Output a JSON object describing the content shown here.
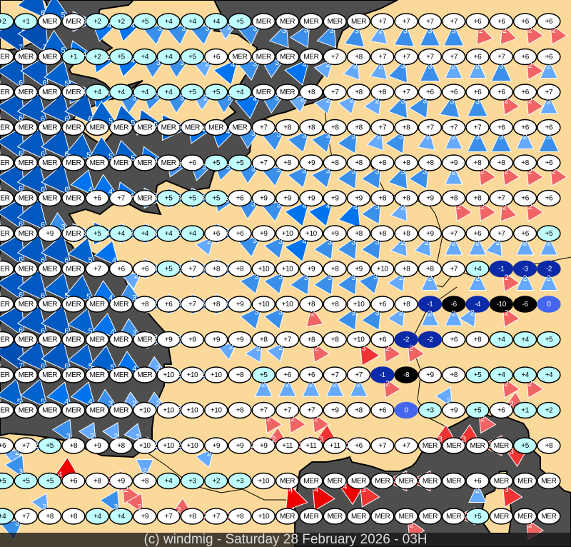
{
  "footer": {
    "credit": "(c) windmig - Saturday 28 February 2026 - 03H"
  },
  "colors": {
    "land": "#fbd99a",
    "sea": "#4e4e4e",
    "coast": "#000000",
    "ellipse_warm": "#ffffff",
    "ellipse_mild": "#c0ffff",
    "ellipse_zero": "#4466ee",
    "ellipse_cold": "#0a2aa8",
    "ellipse_frost": "#000000",
    "wind_blue": {
      "2": "#66aaff",
      "3": "#3a8fea",
      "4": "#0073ee",
      "5": "#0062cc",
      "6": "#0058c0",
      "7": "#0050b4"
    },
    "wind_red": {
      "2": "#f06464",
      "3": "#f03434",
      "4": "#ee0000"
    }
  },
  "legend_note": "station token = temperature,wind force,colour (b blue / r red),vane direction in compass degrees",
  "stations": [
    [
      "+2,4,b,300",
      "+1",
      "MER,6,b,320",
      "MER,5,b,300",
      "+2,3,b,270",
      "+2,4,b,250",
      "+5,4,b,250",
      "+4,3,b,230",
      "+4,3,b,230",
      "+4,3,b,230",
      "+5,2,b,240",
      "MER,3,b,230",
      "MER,3,b,200",
      "MER,3,b,210",
      "MER,3,b,200",
      "MER,3,b,190",
      "+7,2,b,190",
      "+7,3,b,185",
      "+7,3,b,180",
      "+7,3,b,180",
      "+6,2,r,160",
      "+6,2,r,160",
      "+6,2,r,150",
      "+6,2,r,150"
    ],
    [
      "MER,6,b,320",
      "MER,7,b,330",
      "MER,7,b,330",
      "+1,5,b,300",
      "+2,4,b,280",
      "+5,4,b,260",
      "+4,4,b,250",
      "+4,3,b,240",
      "+5,3,b,240",
      "+6,2,b,230",
      "MER,4,b,220",
      "MER,3,b,230",
      "MER,3,b,240",
      "MER,4,b,220",
      "+7,2,b,220",
      "+8,2,b,200",
      "+7,2,b,190",
      "+7,3,b,200",
      "+7,3,b,180",
      "+7,2,b,180",
      "+6,2,b,180",
      "+7,3,b,180",
      "+6,2,r,150",
      "+6,2,b,180"
    ],
    [
      "MER,6,b,330",
      "MER,6,b,330",
      "MER,6,b,330",
      "MER,5,b,320",
      "+4,4,b,270",
      "+4,4,b,260",
      "+4,3,b,240",
      "+4,3,b,250",
      "+5,3,b,240",
      "+5,2,b,240",
      "+4,3,b,240",
      "MER,4,b,230",
      "MER,3,b,240",
      "+8,2,b,230",
      "+7,2,b,220",
      "+8,2,b,220",
      "+8,2,b,210",
      "+7,3,b,200",
      "+6,3,b,210",
      "+6,3,b,190",
      "+6,3,b,180",
      "+6,2,r,150",
      "+6,2,r,150",
      "+7,2,b,180"
    ],
    [
      "MER,6,b,330",
      "MER,6,b,330",
      "MER,6,b,320",
      "MER,6,b,320",
      "MER,6,b,320",
      "MER,5,b,300",
      "MER,5,b,290",
      "MER,5,b,280",
      "MER,5,b,270",
      "MER,4,b,260",
      "MER,4,b,250",
      "+7,3,b,240",
      "+8,3,b,230",
      "+8,3,b,220",
      "+8,3,b,220",
      "+8,3,b,210",
      "+7,2,b,200",
      "+8,3,b,210",
      "+7,2,b,190",
      "+7,2,b,180",
      "+7,3,b,180",
      "+6,3,b,180",
      "+6,2,b,180",
      "+6,3,b,180"
    ],
    [
      "MER,6,b,330",
      "MER,6,b,330",
      "MER,6,b,320",
      "MER,6,b,320",
      "MER,5,b,310",
      "MER,5,b,300",
      "MER,5,b,290",
      "MER,4,b,280",
      "+6,3,b,260",
      "+5,3,b,250",
      "+5,3,b,250",
      "+7,3,b,240",
      "+8,3,b,230",
      "+9,3,b,220",
      "+8,3,b,220",
      "+8,3,b,210",
      "+8,3,b,210",
      "+8,3,b,200",
      "+8,3,b,210",
      "+9,2,b,180",
      "+8,2,r,150",
      "+8,2,r,150",
      "+8,2,r,150",
      "+6,2,r,150"
    ],
    [
      "MER,6,b,330",
      "MER,6,b,330",
      "MER,6,b,320",
      "MER,6,b,320",
      "+6,4,b,320",
      "+7,4,b,300",
      "MER,4,b,280",
      "+5,3,b,270",
      "+5,3,b,270",
      "+5,3,b,270",
      "+6,3,b,260",
      "+9,3,b,240",
      "+9,3,b,230",
      "+9,4,b,220",
      "+9,4,b,220",
      "+9,4,b,200",
      "+8,3,b,210",
      "+8,2,b,200",
      "+9",
      "+8,2,r,150",
      "+8,2,r,150",
      "+7,2,r,160",
      "+6,2,r,150",
      "+6"
    ],
    [
      "MER,6,b,330",
      "MER,6,b,330",
      "+9,6,b,320",
      "MER,3,b,300",
      "+5,3,b,270",
      "+4,4,b,270",
      "+4,3,b,270",
      "+4,3,b,270",
      "+4,2,b,270",
      "+6,2,b,220",
      "+6,3,b,270",
      "+9,3,b,230",
      "+10,3,b,220",
      "+10,4,b,220",
      "+9,3,b,210",
      "+8,3,b,210",
      "+8,3,b,210",
      "+8,2,b,200",
      "+9,2,b,200",
      "+7,2,b,180",
      "+6,2,b,180",
      "+7,2,b,200",
      "+6,2,b,180",
      "+5,2,b,180"
    ],
    [
      "MER,6,b,330",
      "MER,6,b,330",
      "MER,6,b,320",
      "MER,6,b,320",
      "+7,5,b,320",
      "+6,4,b,320",
      "+6,2,b,230",
      "+5,3,b,270",
      "+7,2,b,270",
      "+8,3,b,270",
      "+8,3,b,270",
      "+10,3,b,220",
      "+10,3,b,220",
      "+9,3,b,210",
      "+8,3,b,210",
      "+9,3,b,210",
      "+10,3,b,220",
      "+8,2,b,210",
      "+8,2,b,180",
      "+7",
      "+4,2,b,180",
      "-1,2,r,150",
      "-3,2,b,180",
      "-2,2,b,180"
    ],
    [
      "MER,6,b,330",
      "MER,6,b,330",
      "MER,6,b,320",
      "MER,5,b,320",
      "MER,5,b,310",
      "MER,4,b,300",
      "+8,3,b,300",
      "+6,2,b,270",
      "+7,3,b,270",
      "+8,3,b,270",
      "+9,3,b,270",
      "+10,3,b,220",
      "+10,3,b,220",
      "+8,2,r,170",
      "+8",
      "+10,3,b,210",
      "+6,3,b,210",
      "+8,2,b,210",
      "-1,2,b,180",
      "-6,2,b,180",
      "-4,2,b,210",
      "-10,2,r,150",
      "-6",
      "0"
    ],
    [
      "MER,6,b,330",
      "MER,6,b,330",
      "MER,6,b,320",
      "MER,6,b,320",
      "MER,5,b,320",
      "MER,4,b,310",
      "MER,3,b,300",
      "+9,2,b,270",
      "+8,2,b,270",
      "+9",
      "+9,2,b,230",
      "+8,2,b,210",
      "+7,2,b,220",
      "+8,2,r,150",
      "+8",
      "+10,3,r,150",
      "+6,2,r,150",
      "-2,2,r,150",
      "-2",
      "+6",
      "+8",
      "+4",
      "+4",
      "+5"
    ],
    [
      "MER,6,b,330",
      "MER,7,b,330",
      "MER,6,b,320",
      "MER,6,b,320",
      "MER,5,b,320",
      "MER,5,b,310",
      "MER,4,b,300",
      "+10,2,b,300",
      "+10,2,b,270",
      "+10,2,b,270",
      "+8",
      "+5,2,b,180",
      "+6,2,b,180",
      "+6,2,b,180",
      "+7,2,b,180",
      "+7,2,b,180",
      "-1,2,r,150",
      "-8",
      "+9",
      "+8",
      "+5",
      "+4,2,r,150",
      "+4,2,r,150",
      "+4"
    ],
    [
      "MER,6,b,330",
      "MER,5,b,320",
      "MER,5,b,320",
      "MER,4,b,320",
      "MER,4,b,320",
      "MER,3,b,300",
      "+10,2,b,300",
      "+10,2,b,300",
      "+10,2,b,270",
      "+10",
      "+8",
      "+7,2,r,150",
      "+7,2,r,150",
      "+7,2,r,150",
      "+9",
      "+8",
      "+6",
      "0",
      "+3",
      "+9,2,b,330",
      "+5,2,r,150",
      "+6,2,r,60",
      "+1",
      "+2"
    ],
    [
      "+6,3,b,300",
      "+7,2,b,230",
      "+5,2,b,270",
      "+8,3,b,330",
      "+9,2,b,330",
      "+8,2,b,330",
      "+10,2,b,320",
      "+10,2,b,270",
      "+10,2,b,270",
      "+9,2,b,220",
      "+9,2,r,90",
      "+9,2,r,60",
      "+11,3,r,90",
      "+11,3,r,60",
      "+11,2,r,90",
      "+6",
      "+7",
      "+7",
      "MER,3,r,60",
      "MER,3,r,60",
      "MER,3,r,90",
      "MER,3,r,120",
      "+5",
      "+8"
    ],
    [
      "+5",
      "+5,3,b,330",
      "+5,4,r,60",
      "+6",
      "+8,3,r,90",
      "+9,2,r,150",
      "+8,2,b,0",
      "+4",
      "+3",
      "+2",
      "+3",
      "+10",
      "MER,4,r,160",
      "MER,4,r,150",
      "MER,4,r,120",
      "MER,3,r,150",
      "MER,3,r,90",
      "MER,3,r,90",
      "MER",
      "MER",
      "+6,2,b,180",
      "MER,3,r,150",
      "MER",
      "MER"
    ],
    [
      "+4,4,b,270",
      "+7,3,b,230",
      "+8,2,b,330",
      "+8",
      "+4",
      "+4,3,b,330",
      "+9,2,r,330",
      "+7,2,r,60",
      "+8,2,r,90",
      "+7,2,r,90",
      "+8",
      "+10",
      "MER",
      "MER",
      "MER",
      "MER",
      "MER",
      "MER,2,r,150",
      "MER",
      "MER,2,r,90",
      "+5",
      "MER",
      "MER,2,r,150",
      "MER"
    ]
  ]
}
